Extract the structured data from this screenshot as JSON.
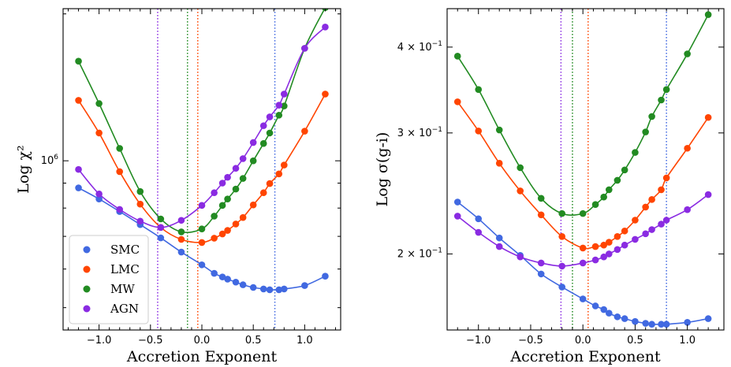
{
  "chart_data": [
    {
      "type": "line",
      "xlabel": "Accretion Exponent",
      "ylabel": "Log χ²",
      "yscale": "log",
      "xlim": [
        -1.35,
        1.35
      ],
      "ylim": [
        450000,
        2050000
      ],
      "xticks": [
        -1.0,
        -0.5,
        0.0,
        0.5,
        1.0
      ],
      "xtick_labels": [
        "−1.0",
        "−0.5",
        "0.0",
        "0.5",
        "1.0"
      ],
      "yticks_major": [
        {
          "value": 1000000,
          "mantissa": "10",
          "exp": "6"
        }
      ],
      "yticks_minor": [
        500000,
        600000,
        700000,
        800000,
        900000,
        2000000
      ],
      "legend": {
        "location": "lower left",
        "entries": [
          "SMC",
          "LMC",
          "MW",
          "AGN"
        ]
      },
      "vlines": [
        {
          "x": 0.71,
          "series": "SMC"
        },
        {
          "x": -0.04,
          "series": "LMC"
        },
        {
          "x": -0.14,
          "series": "MW"
        },
        {
          "x": -0.43,
          "series": "AGN"
        }
      ],
      "series": [
        {
          "name": "SMC",
          "color": "#4169e1",
          "x": [
            -1.2,
            -1.0,
            -0.8,
            -0.6,
            -0.4,
            -0.2,
            0.0,
            0.12,
            0.2,
            0.25,
            0.33,
            0.4,
            0.5,
            0.6,
            0.66,
            0.75,
            0.8,
            1.0,
            1.2
          ],
          "y": [
            880000,
            835000,
            787000,
            740000,
            695000,
            650000,
            612000,
            588000,
            578000,
            572000,
            564000,
            557000,
            550000,
            546000,
            544000,
            544000,
            546000,
            555000,
            580000
          ]
        },
        {
          "name": "LMC",
          "color": "#ff4500",
          "x": [
            -1.2,
            -1.0,
            -0.8,
            -0.6,
            -0.4,
            -0.2,
            0.0,
            0.12,
            0.2,
            0.25,
            0.33,
            0.4,
            0.5,
            0.6,
            0.66,
            0.75,
            0.8,
            1.0,
            1.2
          ],
          "y": [
            1330000,
            1140000,
            950000,
            815000,
            730000,
            690000,
            680000,
            694000,
            708000,
            720000,
            742000,
            765000,
            812000,
            860000,
            898000,
            940000,
            980000,
            1150000,
            1370000
          ]
        },
        {
          "name": "MW",
          "color": "#228b22",
          "x": [
            -1.2,
            -1.0,
            -0.8,
            -0.6,
            -0.4,
            -0.2,
            0.0,
            0.12,
            0.2,
            0.25,
            0.33,
            0.4,
            0.5,
            0.6,
            0.66,
            0.75,
            0.8,
            1.0,
            1.2
          ],
          "y": [
            1600000,
            1310000,
            1060000,
            865000,
            760000,
            715000,
            725000,
            770000,
            810000,
            835000,
            875000,
            920000,
            1000000,
            1085000,
            1140000,
            1240000,
            1295000,
            1700000,
            2060000
          ]
        },
        {
          "name": "AGN",
          "color": "#8a2be2",
          "x": [
            -1.2,
            -1.0,
            -0.8,
            -0.6,
            -0.4,
            -0.2,
            0.0,
            0.12,
            0.2,
            0.25,
            0.33,
            0.4,
            0.5,
            0.6,
            0.66,
            0.75,
            0.8,
            1.0,
            1.2
          ],
          "y": [
            960000,
            855000,
            795000,
            752000,
            730000,
            755000,
            810000,
            860000,
            900000,
            925000,
            965000,
            1010000,
            1090000,
            1180000,
            1230000,
            1300000,
            1370000,
            1700000,
            1880000
          ]
        }
      ]
    },
    {
      "type": "line",
      "xlabel": "Accretion Exponent",
      "ylabel": "Log σ(g-i)",
      "yscale": "log",
      "xlim": [
        -1.3,
        1.35
      ],
      "ylim": [
        0.155,
        0.455
      ],
      "xticks": [
        -1.0,
        -0.5,
        0.0,
        0.5,
        1.0
      ],
      "xtick_labels": [
        "−1.0",
        "−0.5",
        "0.0",
        "0.5",
        "1.0"
      ],
      "yticks_major": [
        {
          "value": 0.2,
          "mantissa": "2 × 10",
          "exp": "−1"
        },
        {
          "value": 0.3,
          "mantissa": "3 × 10",
          "exp": "−1"
        },
        {
          "value": 0.4,
          "mantissa": "4 × 10",
          "exp": "−1"
        }
      ],
      "yticks_minor": [],
      "vlines": [
        {
          "x": 0.8,
          "series": "SMC"
        },
        {
          "x": 0.05,
          "series": "LMC"
        },
        {
          "x": -0.1,
          "series": "MW"
        },
        {
          "x": -0.21,
          "series": "AGN"
        }
      ],
      "series": [
        {
          "name": "SMC",
          "color": "#4169e1",
          "x": [
            -1.2,
            -1.0,
            -0.8,
            -0.6,
            -0.4,
            -0.2,
            0.0,
            0.12,
            0.2,
            0.25,
            0.33,
            0.4,
            0.5,
            0.6,
            0.66,
            0.75,
            0.8,
            1.0,
            1.2
          ],
          "y": [
            0.238,
            0.225,
            0.211,
            0.199,
            0.187,
            0.179,
            0.172,
            0.168,
            0.166,
            0.164,
            0.162,
            0.161,
            0.1595,
            0.1585,
            0.158,
            0.158,
            0.158,
            0.159,
            0.161
          ]
        },
        {
          "name": "LMC",
          "color": "#ff4500",
          "x": [
            -1.2,
            -1.0,
            -0.8,
            -0.6,
            -0.4,
            -0.2,
            0.0,
            0.12,
            0.2,
            0.25,
            0.33,
            0.4,
            0.5,
            0.6,
            0.66,
            0.75,
            0.8,
            1.0,
            1.2
          ],
          "y": [
            0.333,
            0.302,
            0.271,
            0.247,
            0.228,
            0.212,
            0.204,
            0.205,
            0.206,
            0.208,
            0.212,
            0.216,
            0.224,
            0.234,
            0.24,
            0.248,
            0.258,
            0.285,
            0.316
          ]
        },
        {
          "name": "MW",
          "color": "#228b22",
          "x": [
            -1.2,
            -1.0,
            -0.8,
            -0.6,
            -0.4,
            -0.2,
            0.0,
            0.12,
            0.2,
            0.25,
            0.33,
            0.4,
            0.5,
            0.6,
            0.66,
            0.75,
            0.8,
            1.0,
            1.2
          ],
          "y": [
            0.388,
            0.347,
            0.303,
            0.267,
            0.241,
            0.229,
            0.229,
            0.236,
            0.242,
            0.248,
            0.256,
            0.265,
            0.281,
            0.301,
            0.317,
            0.335,
            0.347,
            0.391,
            0.446
          ]
        },
        {
          "name": "AGN",
          "color": "#8a2be2",
          "x": [
            -1.2,
            -1.0,
            -0.8,
            -0.6,
            -0.4,
            -0.2,
            0.0,
            0.12,
            0.2,
            0.25,
            0.33,
            0.4,
            0.5,
            0.6,
            0.66,
            0.75,
            0.8,
            1.0,
            1.2
          ],
          "y": [
            0.227,
            0.215,
            0.205,
            0.198,
            0.194,
            0.192,
            0.194,
            0.196,
            0.198,
            0.2,
            0.203,
            0.206,
            0.21,
            0.214,
            0.217,
            0.221,
            0.224,
            0.232,
            0.244
          ]
        }
      ]
    }
  ]
}
